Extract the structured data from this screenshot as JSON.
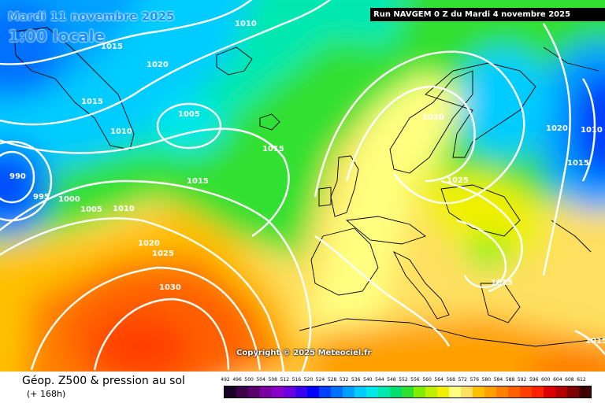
{
  "header": {
    "date": "Mardi 11 novembre 2025",
    "time": "1:00 locale",
    "run": "Run NAVGEM 0 Z du Mardi 4 novembre 2025"
  },
  "copyright": "Copyright © 2025 Meteociel.fr",
  "footer": {
    "title": "Géop. Z500 & pression au sol",
    "forecast_hour": "(+ 168h)"
  },
  "legend": {
    "unit_values": [
      "492",
      "496",
      "500",
      "504",
      "508",
      "512",
      "516",
      "520",
      "524",
      "528",
      "532",
      "536",
      "540",
      "544",
      "548",
      "552",
      "556",
      "560",
      "564",
      "568",
      "572",
      "576",
      "580",
      "584",
      "588",
      "592",
      "596",
      "600",
      "604",
      "608",
      "612"
    ],
    "colors": [
      "#1a0026",
      "#3c004a",
      "#5a006e",
      "#7a00a0",
      "#8b00c8",
      "#6a00e0",
      "#3a00f0",
      "#0000ff",
      "#0040ff",
      "#0070ff",
      "#00a0ff",
      "#00ccff",
      "#00e8e8",
      "#00e8b0",
      "#00e070",
      "#30e030",
      "#80f000",
      "#c0f000",
      "#f0f000",
      "#ffff80",
      "#ffe060",
      "#ffc000",
      "#ffa000",
      "#ff8000",
      "#ff6000",
      "#ff4000",
      "#ff2000",
      "#e00000",
      "#b00000",
      "#800000",
      "#400000"
    ]
  },
  "isobars": [
    "1015",
    "1010",
    "1020",
    "1015",
    "1005",
    "1010",
    "990",
    "995",
    "1000",
    "1005",
    "1010",
    "1015",
    "1015",
    "1030",
    "1020",
    "1010",
    "1015",
    "1025",
    "1020",
    "1025",
    "1030",
    "1015",
    "1015"
  ],
  "colors": {
    "land_outline": "#000000",
    "isobar": "#ffffff",
    "run_box_bg": "#000000",
    "date_text": "#1e90ff"
  }
}
